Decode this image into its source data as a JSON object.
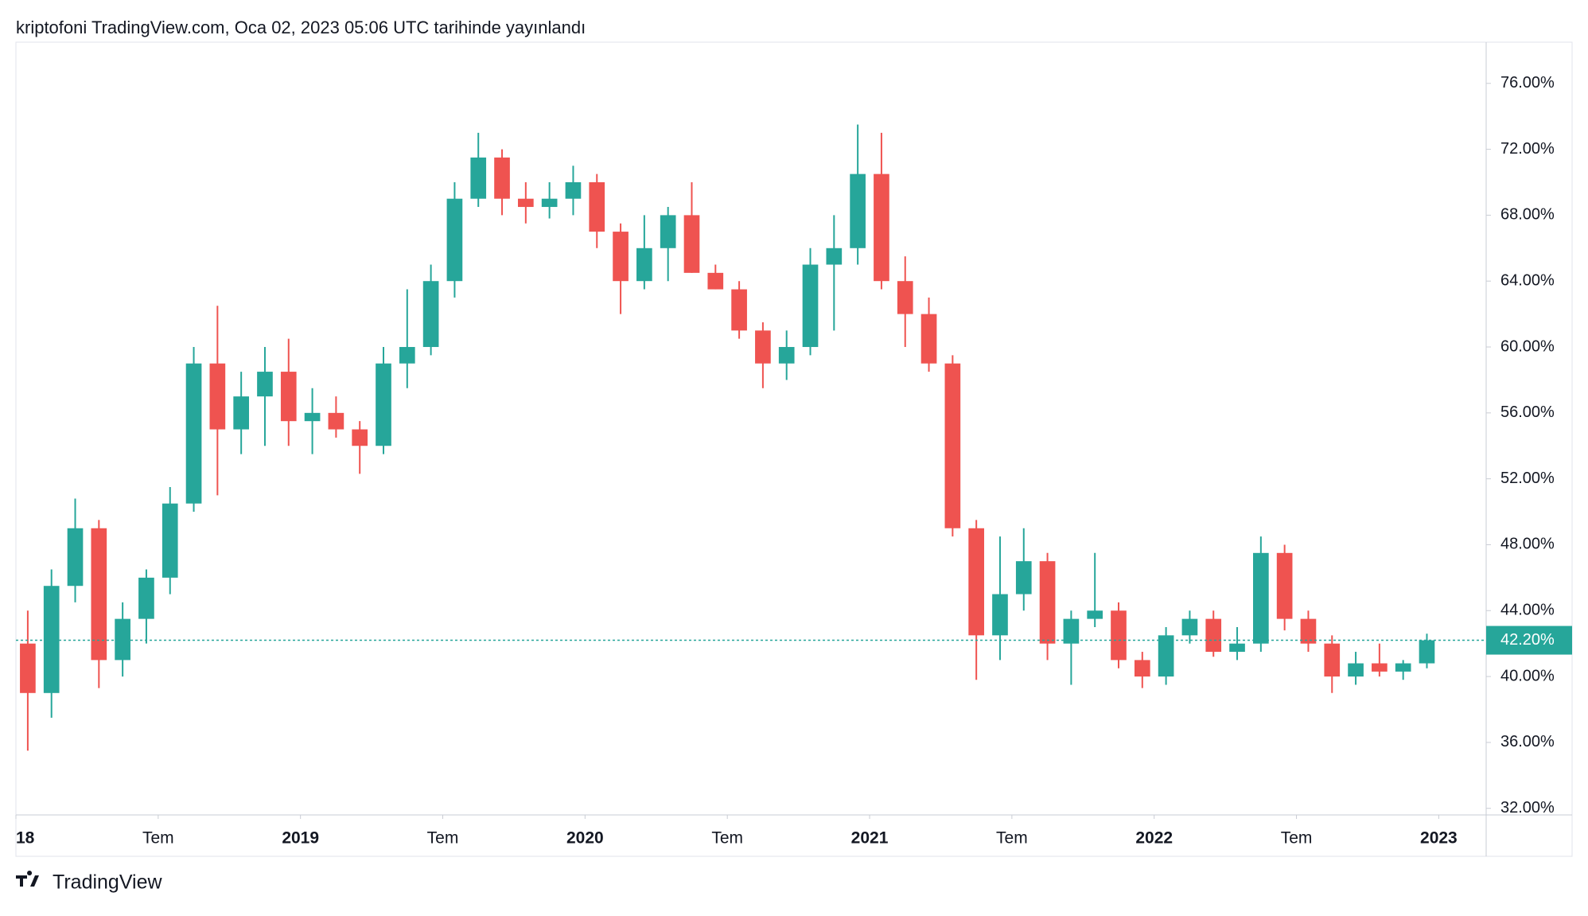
{
  "header": {
    "title": "kriptofoni TradingView.com, Oca 02, 2023 05:06 UTC tarihinde yayınlandı"
  },
  "footer": {
    "brand": "TradingView"
  },
  "chart_data": {
    "type": "candlestick",
    "up_color": "#26a69a",
    "down_color": "#ef5350",
    "x": [
      "2018-01",
      "2018-02",
      "2018-03",
      "2018-04",
      "2018-05",
      "2018-06",
      "2018-07",
      "2018-08",
      "2018-09",
      "2018-10",
      "2018-11",
      "2018-12",
      "2019-01",
      "2019-02",
      "2019-03",
      "2019-04",
      "2019-05",
      "2019-06",
      "2019-07",
      "2019-08",
      "2019-09",
      "2019-10",
      "2019-11",
      "2019-12",
      "2020-01",
      "2020-02",
      "2020-03",
      "2020-04",
      "2020-05",
      "2020-06",
      "2020-07",
      "2020-08",
      "2020-09",
      "2020-10",
      "2020-11",
      "2020-12",
      "2021-01",
      "2021-02",
      "2021-03",
      "2021-04",
      "2021-05",
      "2021-06",
      "2021-07",
      "2021-08",
      "2021-09",
      "2021-10",
      "2021-11",
      "2021-12",
      "2022-01",
      "2022-02",
      "2022-03",
      "2022-04",
      "2022-05",
      "2022-06",
      "2022-07",
      "2022-08",
      "2022-09",
      "2022-10",
      "2022-11",
      "2022-12"
    ],
    "open": [
      42,
      39,
      45.5,
      49,
      41,
      43.5,
      46,
      50.5,
      59,
      55,
      57,
      58.5,
      55.5,
      56,
      55,
      54,
      59,
      60,
      64,
      69,
      71.5,
      69,
      68.5,
      69,
      70,
      67,
      64,
      66,
      68,
      64.5,
      63.5,
      61,
      59,
      60,
      65,
      66,
      70.5,
      64,
      62,
      59,
      49,
      42.5,
      45,
      47,
      42,
      43.5,
      44,
      41,
      40,
      42.5,
      43.5,
      41.5,
      42,
      47.5,
      43.5,
      42,
      40,
      40.8,
      40.3,
      40.8
    ],
    "high": [
      44,
      46.5,
      50.8,
      49.5,
      44.5,
      46.5,
      51.5,
      60,
      62.5,
      58.5,
      60,
      60.5,
      57.5,
      57,
      55.5,
      60,
      63.5,
      65,
      70,
      73,
      72,
      70,
      70,
      71,
      70.5,
      67.5,
      68,
      68.5,
      70,
      65,
      64,
      61.5,
      61,
      66,
      68,
      73.5,
      73,
      65.5,
      63,
      59.5,
      49.5,
      48.5,
      49,
      47.5,
      44,
      47.5,
      44.5,
      41.5,
      43,
      44,
      44,
      43,
      48.5,
      48,
      44,
      42.5,
      41.5,
      42,
      41,
      42.6
    ],
    "low": [
      35.5,
      37.5,
      44.5,
      39.3,
      40,
      42,
      45,
      50,
      51,
      53.5,
      54,
      54,
      53.5,
      54.5,
      52.3,
      53.5,
      57.5,
      59.5,
      63,
      68.5,
      68,
      67.5,
      67.8,
      68,
      66,
      62,
      63.5,
      64,
      64.5,
      63.5,
      60.5,
      57.5,
      58,
      59.5,
      61,
      65,
      63.5,
      60,
      58.5,
      48.5,
      39.8,
      41,
      44,
      41,
      39.5,
      43,
      40.5,
      39.3,
      39.5,
      42,
      41.2,
      41,
      41.5,
      42.8,
      41.5,
      39,
      39.5,
      40,
      39.8,
      40.5
    ],
    "close": [
      39,
      45.5,
      49,
      41,
      43.5,
      46,
      50.5,
      59,
      55,
      57,
      58.5,
      55.5,
      56,
      55,
      54,
      59,
      60,
      64,
      69,
      71.5,
      69,
      68.5,
      69,
      70,
      67,
      64,
      66,
      68,
      64.5,
      63.5,
      61,
      59,
      60,
      65,
      66,
      70.5,
      64,
      62,
      59,
      49,
      42.5,
      45,
      47,
      42,
      43.5,
      44,
      41,
      40,
      42.5,
      43.5,
      41.5,
      42,
      47.5,
      43.5,
      42,
      40,
      40.8,
      40.3,
      40.8,
      42.2
    ],
    "last": {
      "value": 42.2,
      "label": "42.20%"
    },
    "last_color": "#26a69a",
    "xlim": [
      "2018-01",
      "2023-03"
    ],
    "xticks": [
      {
        "value": "2018-01",
        "label": "18"
      },
      {
        "value": "2018-07",
        "label": "Tem"
      },
      {
        "value": "2019-01",
        "label": "2019"
      },
      {
        "value": "2019-07",
        "label": "Tem"
      },
      {
        "value": "2020-01",
        "label": "2020"
      },
      {
        "value": "2020-07",
        "label": "Tem"
      },
      {
        "value": "2021-01",
        "label": "2021"
      },
      {
        "value": "2021-07",
        "label": "Tem"
      },
      {
        "value": "2022-01",
        "label": "2022"
      },
      {
        "value": "2022-07",
        "label": "Tem"
      },
      {
        "value": "2023-01",
        "label": "2023"
      }
    ],
    "ylim": [
      31.6,
      78.5
    ],
    "yticks": [
      {
        "value": 32,
        "label": "32.00%"
      },
      {
        "value": 36,
        "label": "36.00%"
      },
      {
        "value": 40,
        "label": "40.00%"
      },
      {
        "value": 44,
        "label": "44.00%"
      },
      {
        "value": 48,
        "label": "48.00%"
      },
      {
        "value": 52,
        "label": "52.00%"
      },
      {
        "value": 56,
        "label": "56.00%"
      },
      {
        "value": 60,
        "label": "60.00%"
      },
      {
        "value": 64,
        "label": "64.00%"
      },
      {
        "value": 68,
        "label": "68.00%"
      },
      {
        "value": 72,
        "label": "72.00%"
      },
      {
        "value": 76,
        "label": "76.00%"
      }
    ]
  }
}
